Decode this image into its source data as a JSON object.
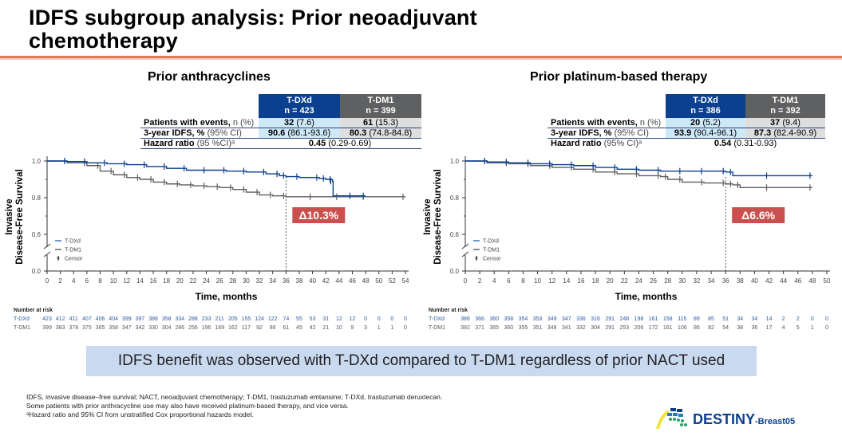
{
  "title": "IDFS subgroup analysis: Prior neoadjuvant chemotherapy",
  "title_line1": "IDFS subgroup analysis: Prior neoadjuvant",
  "title_line2": "chemotherapy",
  "colors": {
    "tdxd": "#0b3f8f",
    "tdm1": "#5f6062",
    "delta_badge": "#c9504f",
    "accent_rule": "#e07a5a",
    "summary_bg": "#c9d9ef"
  },
  "panels": [
    {
      "title": "Prior anthracyclines",
      "table": {
        "col1": {
          "name": "T-DXd",
          "n": "n = 423"
        },
        "col2": {
          "name": "T-DM1",
          "n": "n = 399"
        },
        "rows": [
          {
            "label": "Patients with events,",
            "label_note": " n (%)",
            "v1_bold": "32",
            "v1_rest": " (7.6)",
            "v2_bold": "61",
            "v2_rest": " (15.3)"
          },
          {
            "label": "3-year IDFS, %",
            "label_note": " (95% CI)",
            "v1_bold": "90.6",
            "v1_rest": " (86.1-93.6)",
            "v2_bold": "80.3",
            "v2_rest": " (74.8-84.8)"
          }
        ],
        "hr": {
          "label": "Hazard ratio",
          "label_note": " (95 %CI)ᵃ",
          "bold": "0.45",
          "rest": " (0.29-0.69)"
        }
      },
      "delta": "Δ10.3%",
      "risk": {
        "header": "Number at risk",
        "tdxd_label": "T-DXd",
        "tdm1_label": "T-DM1",
        "tdxd": [
          423,
          412,
          411,
          407,
          406,
          404,
          399,
          397,
          388,
          358,
          334,
          288,
          233,
          211,
          205,
          155,
          124,
          122,
          74,
          55,
          53,
          31,
          12,
          12,
          0,
          0,
          0,
          0
        ],
        "tdm1": [
          399,
          383,
          378,
          375,
          365,
          358,
          347,
          342,
          330,
          304,
          286,
          256,
          196,
          169,
          162,
          117,
          92,
          86,
          61,
          45,
          42,
          21,
          10,
          9,
          3,
          1,
          1,
          0
        ]
      }
    },
    {
      "title": "Prior platinum-based therapy",
      "table": {
        "col1": {
          "name": "T-DXd",
          "n": "n = 386"
        },
        "col2": {
          "name": "T-DM1",
          "n": "n = 392"
        },
        "rows": [
          {
            "label": "Patients with events,",
            "label_note": " n (%)",
            "v1_bold": "20",
            "v1_rest": " (5.2)",
            "v2_bold": "37",
            "v2_rest": " (9.4)"
          },
          {
            "label": "3-year IDFS, %",
            "label_note": " (95% CI)",
            "v1_bold": "93.9",
            "v1_rest": " (90.4-96.1)",
            "v2_bold": "87.3",
            "v2_rest": " (82.4-90.9)"
          }
        ],
        "hr": {
          "label": "Hazard ratio",
          "label_note": " (95% CI)ᵃ",
          "bold": "0.54",
          "rest": " (0.31-0.93)"
        }
      },
      "delta": "Δ6.6%",
      "risk": {
        "header": "Number at risk",
        "tdxd_label": "T-DXd",
        "tdm1_label": "T-DM1",
        "tdxd": [
          386,
          366,
          360,
          358,
          354,
          353,
          349,
          347,
          336,
          316,
          291,
          248,
          198,
          161,
          158,
          115,
          89,
          85,
          51,
          34,
          34,
          14,
          2,
          2,
          0,
          0
        ],
        "tdm1": [
          392,
          371,
          365,
          360,
          355,
          351,
          348,
          341,
          332,
          304,
          291,
          253,
          206,
          172,
          161,
          106,
          86,
          82,
          54,
          38,
          36,
          17,
          4,
          5,
          1,
          0
        ]
      }
    }
  ],
  "chart_data": [
    {
      "type": "line",
      "title": "Prior anthracyclines",
      "xlabel": "Time, months",
      "ylabel": "Invasive Disease-Free Survival",
      "xlim": [
        0,
        54
      ],
      "xticks": [
        0,
        2,
        4,
        6,
        8,
        10,
        12,
        14,
        16,
        18,
        20,
        22,
        24,
        26,
        28,
        30,
        32,
        34,
        36,
        38,
        40,
        42,
        44,
        46,
        48,
        50,
        52,
        54
      ],
      "yticks": [
        0.0,
        0.6,
        0.8,
        1.0
      ],
      "y_axis_break": true,
      "legend": [
        "T-DXd",
        "T-DM1",
        "Censor"
      ],
      "legend_position": "bottom-left",
      "reference_line_x": 36,
      "annotation": "Δ10.3%",
      "series": [
        {
          "name": "T-DXd",
          "x": [
            0,
            3,
            6,
            9,
            12,
            15,
            18,
            21,
            24,
            27,
            30,
            33,
            35,
            36,
            38,
            41,
            42,
            43,
            43.1,
            46,
            48
          ],
          "y": [
            1.0,
            0.997,
            0.99,
            0.985,
            0.98,
            0.97,
            0.96,
            0.95,
            0.95,
            0.945,
            0.94,
            0.93,
            0.92,
            0.915,
            0.91,
            0.905,
            0.9,
            0.89,
            0.81,
            0.81,
            0.81
          ]
        },
        {
          "name": "T-DM1",
          "x": [
            0,
            3,
            6,
            8,
            10,
            12,
            14,
            16,
            18,
            20,
            22,
            24,
            26,
            28,
            30,
            32,
            34,
            36,
            40,
            44,
            48,
            54
          ],
          "y": [
            1.0,
            0.99,
            0.975,
            0.945,
            0.925,
            0.91,
            0.9,
            0.885,
            0.875,
            0.87,
            0.865,
            0.86,
            0.855,
            0.845,
            0.83,
            0.815,
            0.81,
            0.805,
            0.805,
            0.805,
            0.805,
            0.805
          ]
        }
      ]
    },
    {
      "type": "line",
      "title": "Prior platinum-based therapy",
      "xlabel": "Time, months",
      "ylabel": "Invasive Disease-Free Survival",
      "xlim": [
        0,
        50
      ],
      "xticks": [
        0,
        2,
        4,
        6,
        8,
        10,
        12,
        14,
        16,
        18,
        20,
        22,
        24,
        26,
        28,
        30,
        32,
        34,
        36,
        38,
        40,
        42,
        44,
        46,
        48,
        50
      ],
      "yticks": [
        0.0,
        0.6,
        0.8,
        1.0
      ],
      "y_axis_break": true,
      "legend": [
        "T-DXd",
        "T-DM1",
        "Censor"
      ],
      "legend_position": "bottom-left",
      "reference_line_x": 36,
      "annotation": "Δ6.6%",
      "series": [
        {
          "name": "T-DXd",
          "x": [
            0,
            3,
            6,
            9,
            12,
            15,
            18,
            21,
            24,
            27,
            30,
            33,
            36,
            37,
            42,
            48
          ],
          "y": [
            1.0,
            0.995,
            0.99,
            0.985,
            0.98,
            0.975,
            0.965,
            0.955,
            0.95,
            0.945,
            0.945,
            0.945,
            0.94,
            0.92,
            0.92,
            0.92
          ]
        },
        {
          "name": "T-DM1",
          "x": [
            0,
            3,
            6,
            9,
            12,
            15,
            18,
            21,
            24,
            27,
            28,
            30,
            33,
            36,
            37,
            38,
            42,
            48
          ],
          "y": [
            1.0,
            0.99,
            0.985,
            0.975,
            0.965,
            0.955,
            0.94,
            0.93,
            0.92,
            0.915,
            0.9,
            0.885,
            0.88,
            0.875,
            0.87,
            0.855,
            0.855,
            0.855
          ]
        }
      ]
    }
  ],
  "summary": "IDFS benefit was observed with T-DXd compared to T-DM1 regardless of prior NACT used",
  "footnotes": [
    "IDFS, invasive disease–free survival; NACT, neoadjuvant chemotherapy; T-DM1, trastuzumab emtansine; T-DXd, trastuzumab deruxtecan.",
    "Some patients with prior anthracycline use may also have received platinum-based therapy, and vice versa.",
    "ᵃHazard ratio and 95% CI from unstratified Cox proportional hazards model."
  ],
  "logo": {
    "main": "DESTINY",
    "sub": "-Breast05"
  }
}
